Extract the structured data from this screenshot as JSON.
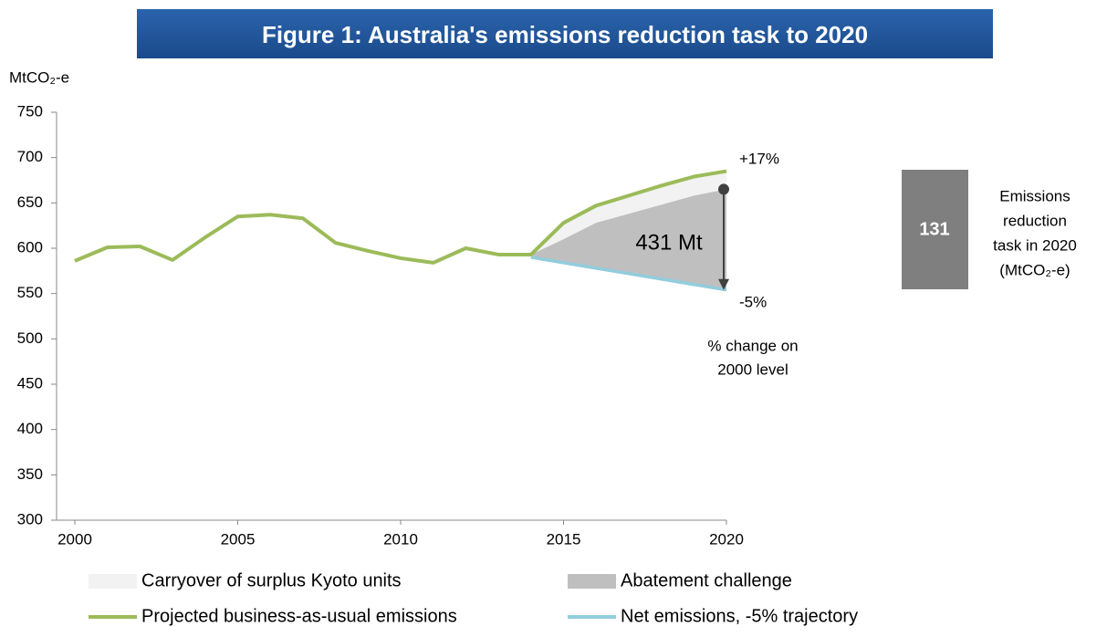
{
  "chart_data": {
    "type": "line",
    "title": "Figure 1: Australia's emissions reduction task to 2020",
    "y_axis_label": "MtCO₂-e",
    "x": [
      2000,
      2001,
      2002,
      2003,
      2004,
      2005,
      2006,
      2007,
      2008,
      2009,
      2010,
      2011,
      2012,
      2013,
      2014,
      2015,
      2016,
      2017,
      2018,
      2019,
      2020
    ],
    "xlim": [
      2000,
      2020
    ],
    "xticks": [
      2000,
      2005,
      2010,
      2015,
      2020
    ],
    "ylim": [
      300,
      750
    ],
    "yticks": [
      300,
      350,
      400,
      450,
      500,
      550,
      600,
      650,
      700,
      750
    ],
    "series": [
      {
        "name": "Carryover of surplus Kyoto units",
        "color": "#f2f2f2",
        "fill_between": [
          2,
          1
        ]
      },
      {
        "name": "Abatement challenge",
        "color": "#bfbfbf",
        "fill_to": 3,
        "values": [
          null,
          null,
          null,
          null,
          null,
          null,
          null,
          null,
          null,
          null,
          null,
          null,
          null,
          null,
          593,
          610,
          628,
          638,
          648,
          658,
          665
        ]
      },
      {
        "name": "Projected business-as-usual emissions",
        "color": "#9bbb59",
        "values": [
          586,
          601,
          602,
          587,
          612,
          635,
          637,
          633,
          606,
          597,
          589,
          584,
          600,
          593,
          593,
          628,
          647,
          658,
          669,
          679,
          685
        ]
      },
      {
        "name": "Net emissions, -5% trajectory",
        "color": "#92cddc",
        "values": [
          null,
          null,
          null,
          null,
          null,
          null,
          null,
          null,
          null,
          null,
          null,
          null,
          null,
          null,
          590,
          584,
          578,
          572,
          566,
          560,
          554
        ]
      }
    ],
    "annotations": {
      "bau_change": "+17%",
      "target_change": "-5%",
      "total": "431 Mt",
      "change_note": [
        "% change on",
        "2000 level"
      ]
    },
    "task": {
      "value": 131,
      "label": [
        "Emissions",
        "reduction",
        "task in 2020",
        "(MtCO₂-e)"
      ],
      "color": "#7f7f7f"
    }
  }
}
